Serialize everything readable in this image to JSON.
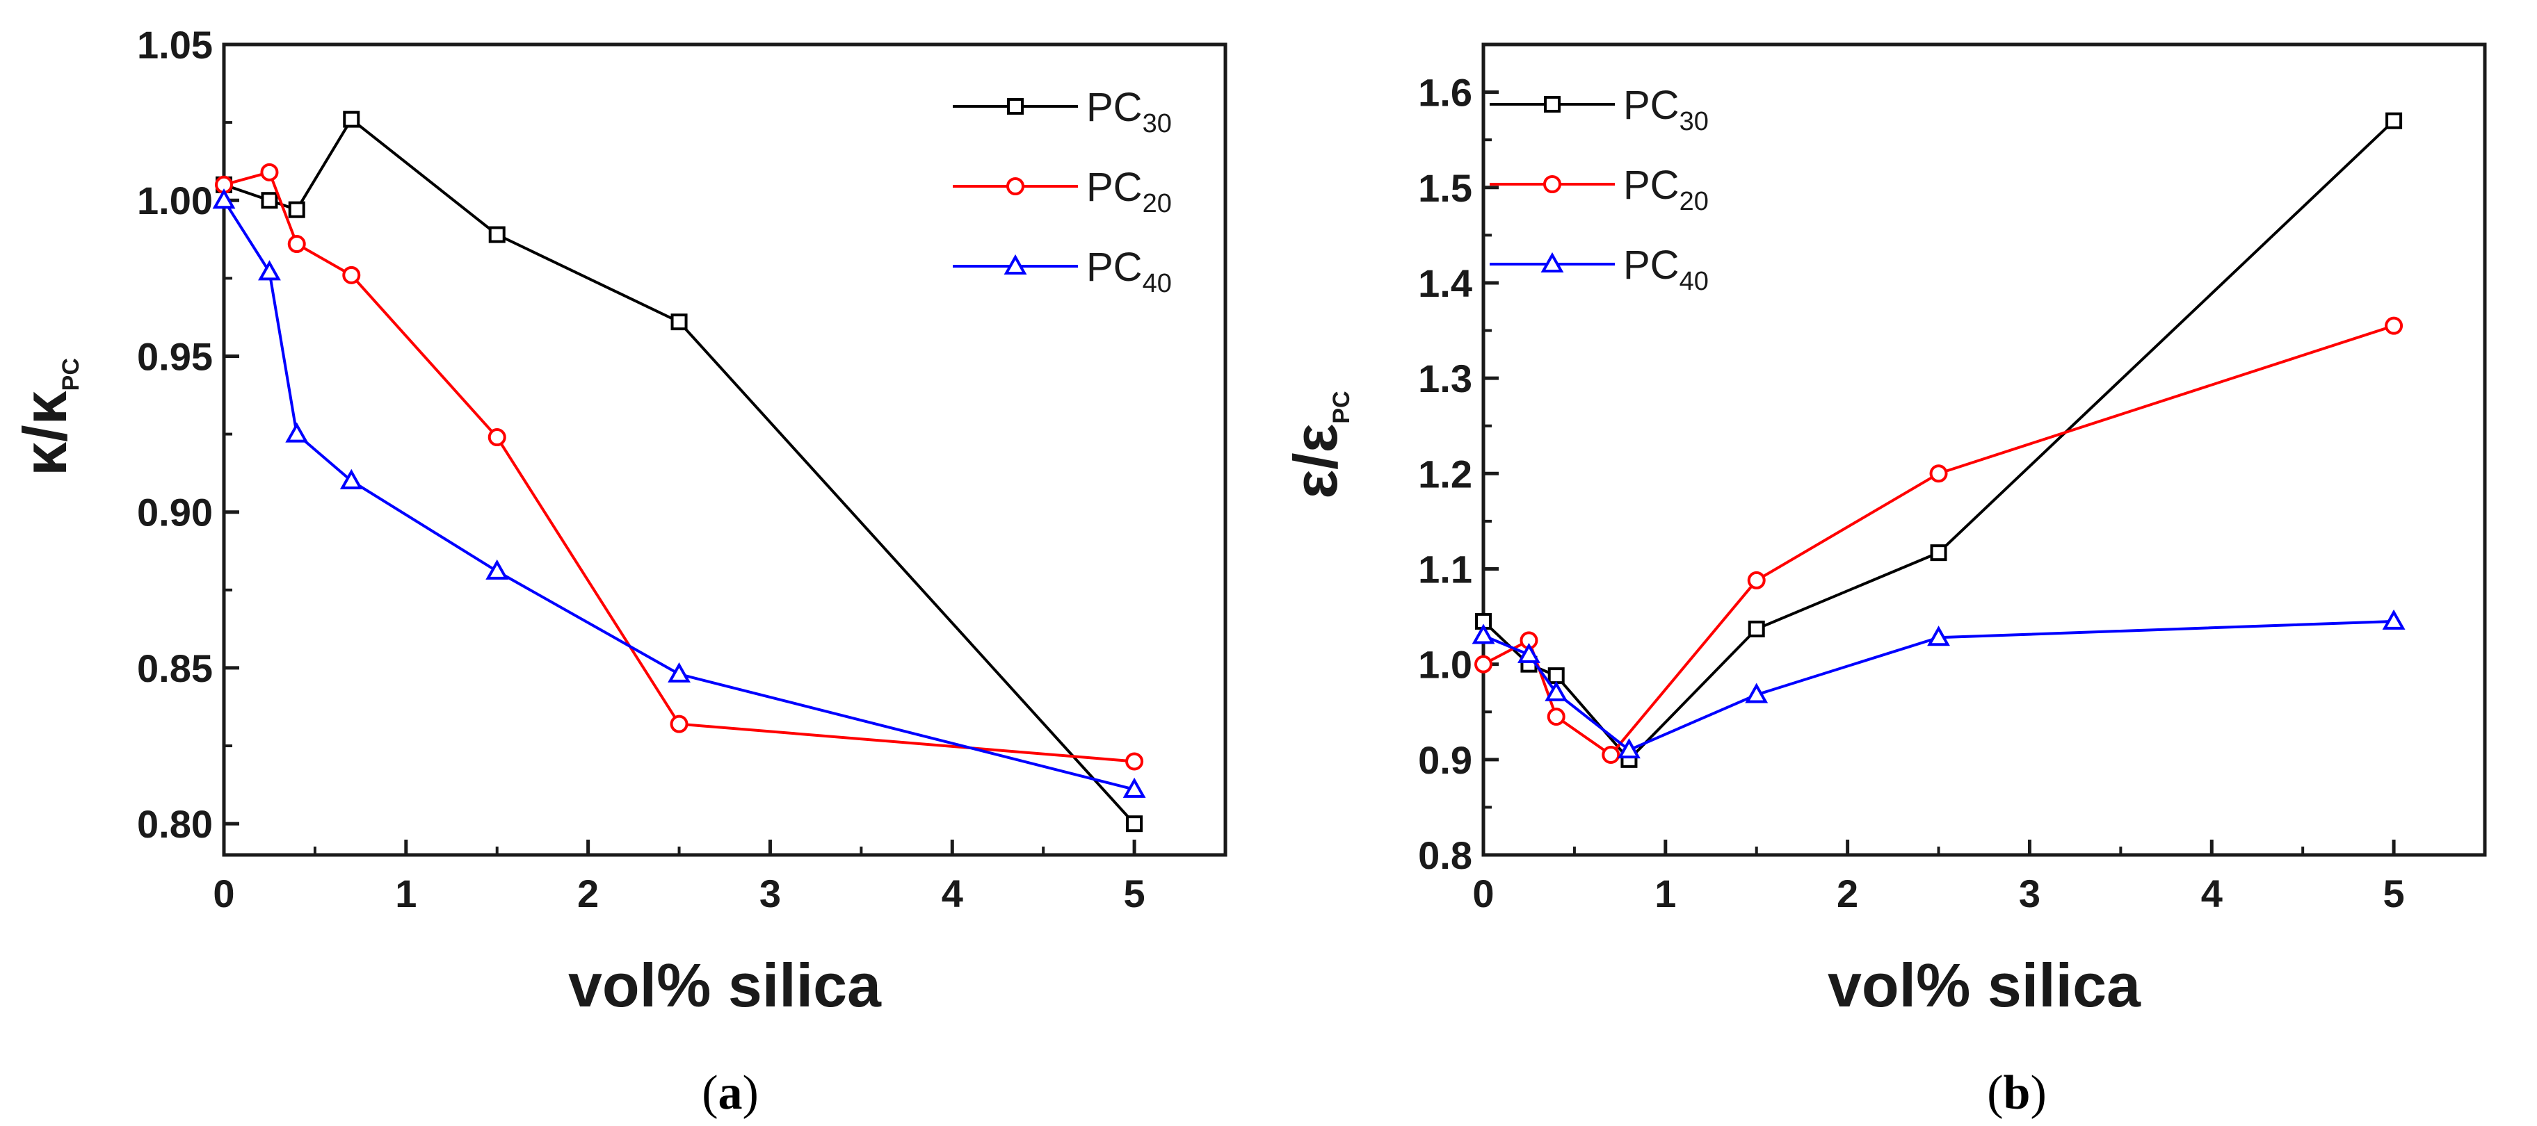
{
  "chart_data": [
    {
      "type": "line",
      "caption_letter": "a",
      "title": "",
      "xlabel": "vol% silica",
      "ylabel": {
        "main": "κ/κ",
        "sub": "PC"
      },
      "xlim": [
        0,
        5.5
      ],
      "ylim": [
        0.79,
        1.05
      ],
      "xticks": [
        0,
        1,
        2,
        3,
        4,
        5
      ],
      "yticks": [
        0.8,
        0.85,
        0.9,
        0.95,
        1.0,
        1.05
      ],
      "ytick_labels": [
        "0.80",
        "0.85",
        "0.90",
        "0.95",
        "1.00",
        "1.05"
      ],
      "legend_position": "top-right",
      "series": [
        {
          "name": "PC",
          "sub": "30",
          "color": "#000000",
          "marker": "square",
          "x": [
            0,
            0.25,
            0.4,
            0.7,
            1.5,
            2.5,
            5
          ],
          "y": [
            1.005,
            1.0,
            0.997,
            1.026,
            0.989,
            0.961,
            0.8
          ]
        },
        {
          "name": "PC",
          "sub": "20",
          "color": "#ff0000",
          "marker": "circle",
          "x": [
            0,
            0.25,
            0.4,
            0.7,
            1.5,
            2.5,
            5
          ],
          "y": [
            1.005,
            1.009,
            0.986,
            0.976,
            0.924,
            0.832,
            0.82
          ]
        },
        {
          "name": "PC",
          "sub": "40",
          "color": "#0000ff",
          "marker": "triangle",
          "x": [
            0,
            0.25,
            0.4,
            0.7,
            1.5,
            2.5,
            5
          ],
          "y": [
            1.0,
            0.977,
            0.925,
            0.91,
            0.881,
            0.848,
            0.811
          ]
        }
      ]
    },
    {
      "type": "line",
      "caption_letter": "b",
      "title": "",
      "xlabel": "vol% silica",
      "ylabel": {
        "main": "ε/ε",
        "sub": "PC"
      },
      "xlim": [
        0,
        5.5
      ],
      "ylim": [
        0.8,
        1.65
      ],
      "xticks": [
        0,
        1,
        2,
        3,
        4,
        5
      ],
      "yticks": [
        0.8,
        0.9,
        1.0,
        1.1,
        1.2,
        1.3,
        1.4,
        1.5,
        1.6
      ],
      "ytick_labels": [
        "0.8",
        "0.9",
        "1.0",
        "1.1",
        "1.2",
        "1.3",
        "1.4",
        "1.5",
        "1.6"
      ],
      "legend_position": "top-left",
      "series": [
        {
          "name": "PC",
          "sub": "30",
          "color": "#000000",
          "marker": "square",
          "x": [
            0,
            0.25,
            0.4,
            0.8,
            1.5,
            2.5,
            5
          ],
          "y": [
            1.045,
            1.0,
            0.988,
            0.9,
            1.037,
            1.117,
            1.57
          ]
        },
        {
          "name": "PC",
          "sub": "20",
          "color": "#ff0000",
          "marker": "circle",
          "x": [
            0,
            0.25,
            0.4,
            0.7,
            1.5,
            2.5,
            5
          ],
          "y": [
            1.0,
            1.025,
            0.945,
            0.905,
            1.088,
            1.2,
            1.355
          ]
        },
        {
          "name": "PC",
          "sub": "40",
          "color": "#0000ff",
          "marker": "triangle",
          "x": [
            0,
            0.25,
            0.4,
            0.8,
            1.5,
            2.5,
            5
          ],
          "y": [
            1.03,
            1.01,
            0.97,
            0.91,
            0.968,
            1.028,
            1.045
          ]
        }
      ]
    }
  ]
}
